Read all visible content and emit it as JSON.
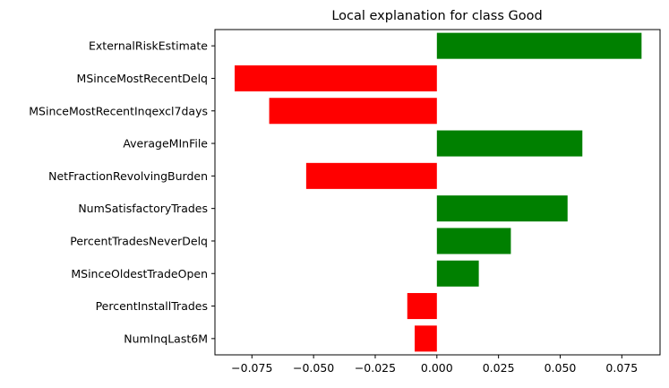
{
  "chart_data": {
    "type": "bar",
    "orientation": "horizontal",
    "title": "Local explanation for class Good",
    "xlabel": "",
    "ylabel": "",
    "categories": [
      "ExternalRiskEstimate",
      "MSinceMostRecentDelq",
      "MSinceMostRecentInqexcl7days",
      "AverageMInFile",
      "NetFractionRevolvingBurden",
      "NumSatisfactoryTrades",
      "PercentTradesNeverDelq",
      "MSinceOldestTradeOpen",
      "PercentInstallTrades",
      "NumInqLast6M"
    ],
    "values": [
      0.083,
      -0.082,
      -0.068,
      0.059,
      -0.053,
      0.053,
      0.03,
      0.017,
      -0.012,
      -0.009
    ],
    "xlim": [
      -0.09,
      0.0905
    ],
    "xticks": [
      "-0.075",
      "-0.050",
      "-0.025",
      "0.000",
      "0.025",
      "0.050",
      "0.075"
    ],
    "grid": false,
    "legend": "none",
    "colors": {
      "positive": "#008000",
      "negative": "#ff0000"
    }
  }
}
